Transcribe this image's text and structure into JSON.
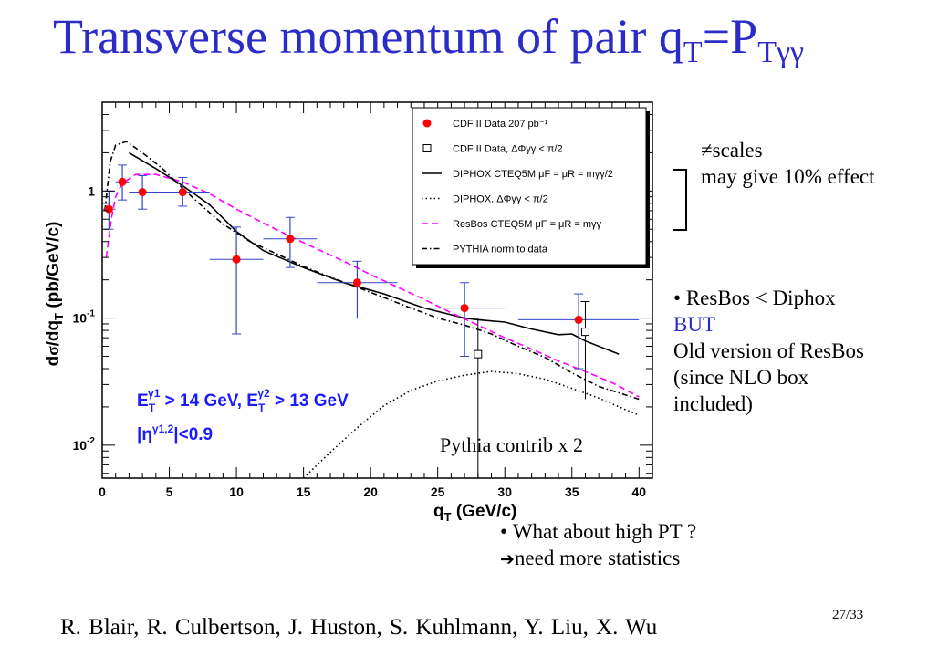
{
  "title": {
    "main": "Transverse momentum of pair q",
    "sub1": "T",
    "eq": "=P",
    "sub2": "Tγγ"
  },
  "chart_data": {
    "type": "scatter",
    "xlabel": "q_T (GeV/c)",
    "ylabel": "dσ/dq_T (pb/GeV/c)",
    "xlim": [
      0,
      41
    ],
    "ylim": [
      0.0055,
      5
    ],
    "yscale": "log",
    "x_ticks": [
      "0",
      "5",
      "10",
      "15",
      "20",
      "25",
      "30",
      "35",
      "40"
    ],
    "y_tick_labels": [
      {
        "value": 1,
        "base": "1",
        "exp": ""
      },
      {
        "value": 0.1,
        "base": "10",
        "exp": "-1"
      },
      {
        "value": 0.01,
        "base": "10",
        "exp": "-2"
      }
    ],
    "legend_position": "top-right",
    "legend": [
      {
        "label": "CDF II Data 207 pb⁻¹",
        "style": "red-dot"
      },
      {
        "label": "CDF II Data, ΔΦγγ < π/2",
        "style": "open-square"
      },
      {
        "label": "DIPHOX CTEQ5M μF = μR = mγγ/2",
        "style": "solid"
      },
      {
        "label": "DIPHOX, ΔΦγγ < π/2",
        "style": "dotted"
      },
      {
        "label": "ResBos CTEQ5M μF = μR = mγγ",
        "style": "dashed-magenta"
      },
      {
        "label": "PYTHIA norm to data",
        "style": "dashdot"
      }
    ],
    "cut_label_1": "E_T^γ1 > 14 GeV, E_T^γ2 > 13 GeV",
    "cut_label_2": "|η^γ1,2|<0.9",
    "annotation": "Pythia contrib x 2",
    "series": [
      {
        "name": "CDF II Data 207 pb⁻¹",
        "color": "#ff0000",
        "points": [
          {
            "x": 0.5,
            "y": 0.72,
            "xlo": 0,
            "xhi": 1,
            "ylo": 0.5,
            "yhi": 1.0
          },
          {
            "x": 1.5,
            "y": 1.18,
            "xlo": 1,
            "xhi": 2,
            "ylo": 0.85,
            "yhi": 1.6
          },
          {
            "x": 3.0,
            "y": 0.98,
            "xlo": 2,
            "xhi": 4,
            "ylo": 0.72,
            "yhi": 1.32
          },
          {
            "x": 6.0,
            "y": 0.98,
            "xlo": 4,
            "xhi": 8,
            "ylo": 0.76,
            "yhi": 1.28
          },
          {
            "x": 10.0,
            "y": 0.29,
            "xlo": 8,
            "xhi": 12,
            "ylo": 0.075,
            "yhi": 0.52
          },
          {
            "x": 14.0,
            "y": 0.42,
            "xlo": 12,
            "xhi": 16,
            "ylo": 0.25,
            "yhi": 0.62
          },
          {
            "x": 19.0,
            "y": 0.19,
            "xlo": 16,
            "xhi": 22,
            "ylo": 0.1,
            "yhi": 0.28
          },
          {
            "x": 27.0,
            "y": 0.12,
            "xlo": 24,
            "xhi": 30,
            "ylo": 0.05,
            "yhi": 0.19
          },
          {
            "x": 35.5,
            "y": 0.097,
            "xlo": 31,
            "xhi": 40,
            "ylo": 0.04,
            "yhi": 0.155
          }
        ]
      },
      {
        "name": "CDF II Data, ΔΦγγ < π/2",
        "color": "#000000",
        "points": [
          {
            "x": 28.0,
            "y": 0.052,
            "ylo": 0.003,
            "yhi": 0.1
          },
          {
            "x": 36.0,
            "y": 0.078,
            "ylo": 0.023,
            "yhi": 0.135
          }
        ]
      },
      {
        "name": "DIPHOX CTEQ5M μF = μR = mγγ/2",
        "style": "solid",
        "color": "#000000",
        "points": [
          [
            2,
            2.0
          ],
          [
            4,
            1.5
          ],
          [
            6,
            1.1
          ],
          [
            8,
            0.78
          ],
          [
            10,
            0.48
          ],
          [
            12,
            0.34
          ],
          [
            15,
            0.25
          ],
          [
            18,
            0.19
          ],
          [
            21,
            0.155
          ],
          [
            24,
            0.12
          ],
          [
            27,
            0.1
          ],
          [
            28,
            0.097
          ],
          [
            30,
            0.093
          ],
          [
            32,
            0.082
          ],
          [
            34,
            0.074
          ],
          [
            35,
            0.075
          ],
          [
            36,
            0.066
          ],
          [
            38.5,
            0.052
          ]
        ]
      },
      {
        "name": "DIPHOX, ΔΦγγ < π/2",
        "style": "dotted",
        "color": "#000000",
        "points": [
          [
            15,
            0.0055
          ],
          [
            17,
            0.0088
          ],
          [
            19,
            0.0137
          ],
          [
            21,
            0.0205
          ],
          [
            23,
            0.027
          ],
          [
            25,
            0.032
          ],
          [
            27,
            0.0355
          ],
          [
            29,
            0.038
          ],
          [
            31,
            0.0365
          ],
          [
            33,
            0.033
          ],
          [
            35,
            0.028
          ],
          [
            37,
            0.0235
          ],
          [
            39,
            0.019
          ],
          [
            40,
            0.0172
          ]
        ]
      },
      {
        "name": "ResBos CTEQ5M μF = μR = mγγ",
        "style": "dashed",
        "color": "#ff00ff",
        "points": [
          [
            0.3,
            0.3
          ],
          [
            0.7,
            0.62
          ],
          [
            1,
            0.9
          ],
          [
            1.5,
            1.15
          ],
          [
            2.5,
            1.35
          ],
          [
            4,
            1.35
          ],
          [
            6,
            1.18
          ],
          [
            8,
            0.95
          ],
          [
            10,
            0.72
          ],
          [
            12,
            0.56
          ],
          [
            14,
            0.44
          ],
          [
            16,
            0.35
          ],
          [
            18,
            0.28
          ],
          [
            20,
            0.22
          ],
          [
            22,
            0.175
          ],
          [
            24,
            0.14
          ],
          [
            26,
            0.11
          ],
          [
            28,
            0.088
          ],
          [
            30,
            0.07
          ],
          [
            32,
            0.057
          ],
          [
            34,
            0.046
          ],
          [
            36,
            0.038
          ],
          [
            38,
            0.031
          ],
          [
            40,
            0.024
          ]
        ]
      },
      {
        "name": "PYTHIA norm to data",
        "style": "dashdot",
        "color": "#000000",
        "points": [
          [
            0.2,
            0.7
          ],
          [
            0.6,
            1.7
          ],
          [
            1,
            2.3
          ],
          [
            1.8,
            2.45
          ],
          [
            3,
            2.0
          ],
          [
            4.5,
            1.5
          ],
          [
            6,
            1.05
          ],
          [
            7.5,
            0.75
          ],
          [
            9,
            0.55
          ],
          [
            11,
            0.4
          ],
          [
            13,
            0.32
          ],
          [
            15,
            0.255
          ],
          [
            17,
            0.21
          ],
          [
            19,
            0.175
          ],
          [
            21,
            0.145
          ],
          [
            23,
            0.12
          ],
          [
            25,
            0.1
          ],
          [
            27,
            0.088
          ],
          [
            29,
            0.075
          ],
          [
            31,
            0.06
          ],
          [
            33,
            0.049
          ],
          [
            35,
            0.037
          ],
          [
            37,
            0.029
          ],
          [
            40,
            0.023
          ]
        ]
      }
    ]
  },
  "notes": {
    "scales_line1": "≠scales",
    "scales_line2": "may give 10% effect",
    "resbos_line1": "ResBos < Diphox",
    "resbos_line2": "BUT",
    "resbos_line3": "Old version of ResBos",
    "resbos_line4": "(since NLO box",
    "resbos_line5": "included)",
    "highpt_line1": "What about high PT ?",
    "highpt_line2": "need more statistics",
    "arrow_glyph": "➔"
  },
  "footer": {
    "authors": "R. Blair, R. Culbertson, J. Huston, S. Kuhlmann, Y. Liu, X. Wu",
    "page": "27/33"
  }
}
